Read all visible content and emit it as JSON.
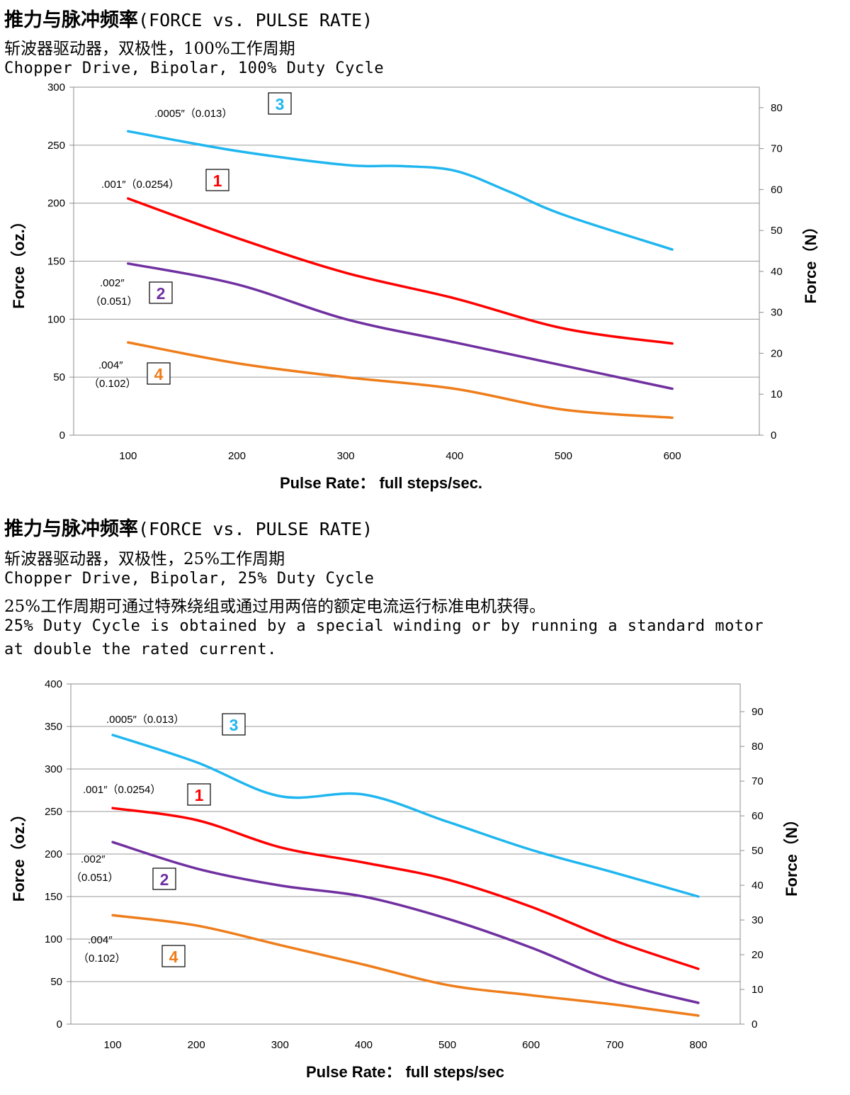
{
  "colors": {
    "curve_1": "#ff0000",
    "curve_2": "#7030a0",
    "curve_3": "#1fb6ef",
    "curve_4": "#ee7d1b",
    "grid": "#9a9a9a",
    "frame": "#8c8c8c"
  },
  "section1": {
    "title_cn": "推力与脉冲频率",
    "title_en": "(FORCE vs. PULSE RATE)",
    "line1": "斩波器驱动器，双极性，100%工作周期",
    "line2": "Chopper Drive, Bipolar, 100% Duty Cycle"
  },
  "section2": {
    "title_cn": "推力与脉冲频率",
    "title_en": "(FORCE vs. PULSE RATE)",
    "line1": "斩波器驱动器，双极性，25%工作周期",
    "line2": "Chopper Drive, Bipolar, 25% Duty Cycle",
    "line3": "25%工作周期可通过特殊绕组或通过用两倍的额定电流运行标准电机获得。",
    "line4": "25% Duty Cycle is obtained by a special winding or by running a standard motor",
    "line5": "at double the rated current."
  },
  "chart_data": [
    {
      "type": "line",
      "xlabel": "Pulse Rate：  full steps/sec.",
      "ylabel": "Force（oz.）",
      "y2label": "Force（N）",
      "x_ticks": [
        "100",
        "200",
        "300",
        "400",
        "500",
        "600"
      ],
      "y_ticks": [
        "0",
        "50",
        "100",
        "150",
        "200",
        "250",
        "300"
      ],
      "y2_ticks": [
        "0",
        "10",
        "20",
        "30",
        "40",
        "50",
        "60",
        "70",
        "80"
      ],
      "xlim": [
        50,
        680
      ],
      "ylim": [
        0,
        300
      ],
      "y2lim": [
        0,
        85
      ],
      "grid": "horizontal",
      "series": [
        {
          "id": "1",
          "label_line1": ".001″（0.0254）",
          "label_line2": "",
          "x": [
            100,
            200,
            300,
            400,
            500,
            600
          ],
          "values": [
            204,
            170,
            140,
            118,
            92,
            79
          ]
        },
        {
          "id": "2",
          "label_line1": ".002″",
          "label_line2": "（0.051）",
          "x": [
            100,
            200,
            300,
            400,
            500,
            600
          ],
          "values": [
            148,
            130,
            100,
            80,
            60,
            40
          ]
        },
        {
          "id": "3",
          "label_line1": ".0005″（0.013）",
          "label_line2": "",
          "x": [
            100,
            200,
            300,
            350,
            400,
            450,
            500,
            600
          ],
          "values": [
            262,
            245,
            233,
            232,
            228,
            210,
            190,
            160
          ]
        },
        {
          "id": "4",
          "label_line1": ".004″",
          "label_line2": "（0.102）",
          "x": [
            100,
            200,
            300,
            400,
            500,
            600
          ],
          "values": [
            80,
            62,
            50,
            40,
            22,
            15
          ]
        }
      ]
    },
    {
      "type": "line",
      "xlabel": "Pulse Rate：  full steps/sec",
      "ylabel": "Force（oz.）",
      "y2label": "Force（N）",
      "x_ticks": [
        "100",
        "200",
        "300",
        "400",
        "500",
        "600",
        "700",
        "800"
      ],
      "y_ticks": [
        "0",
        "50",
        "100",
        "150",
        "200",
        "250",
        "300",
        "350",
        "400"
      ],
      "y2_ticks": [
        "0",
        "10",
        "20",
        "30",
        "40",
        "50",
        "60",
        "70",
        "80",
        "90"
      ],
      "xlim": [
        50,
        850
      ],
      "ylim": [
        0,
        400
      ],
      "y2lim": [
        0,
        98
      ],
      "grid": "horizontal",
      "series": [
        {
          "id": "1",
          "label_line1": ".001″（0.0254）",
          "label_line2": "",
          "x": [
            100,
            200,
            300,
            400,
            500,
            600,
            700,
            800
          ],
          "values": [
            254,
            240,
            208,
            190,
            170,
            138,
            98,
            65
          ]
        },
        {
          "id": "2",
          "label_line1": ".002″",
          "label_line2": "（0.051）",
          "x": [
            100,
            200,
            300,
            400,
            500,
            600,
            700,
            800
          ],
          "values": [
            214,
            183,
            163,
            150,
            124,
            90,
            50,
            25
          ]
        },
        {
          "id": "3",
          "label_line1": ".0005″（0.013）",
          "label_line2": "",
          "x": [
            100,
            200,
            300,
            400,
            500,
            600,
            700,
            800
          ],
          "values": [
            340,
            308,
            268,
            270,
            238,
            205,
            178,
            150
          ]
        },
        {
          "id": "4",
          "label_line1": ".004″",
          "label_line2": "（0.102）",
          "x": [
            100,
            200,
            300,
            400,
            500,
            600,
            700,
            800
          ],
          "values": [
            128,
            116,
            93,
            70,
            46,
            34,
            23,
            10
          ]
        }
      ]
    }
  ]
}
